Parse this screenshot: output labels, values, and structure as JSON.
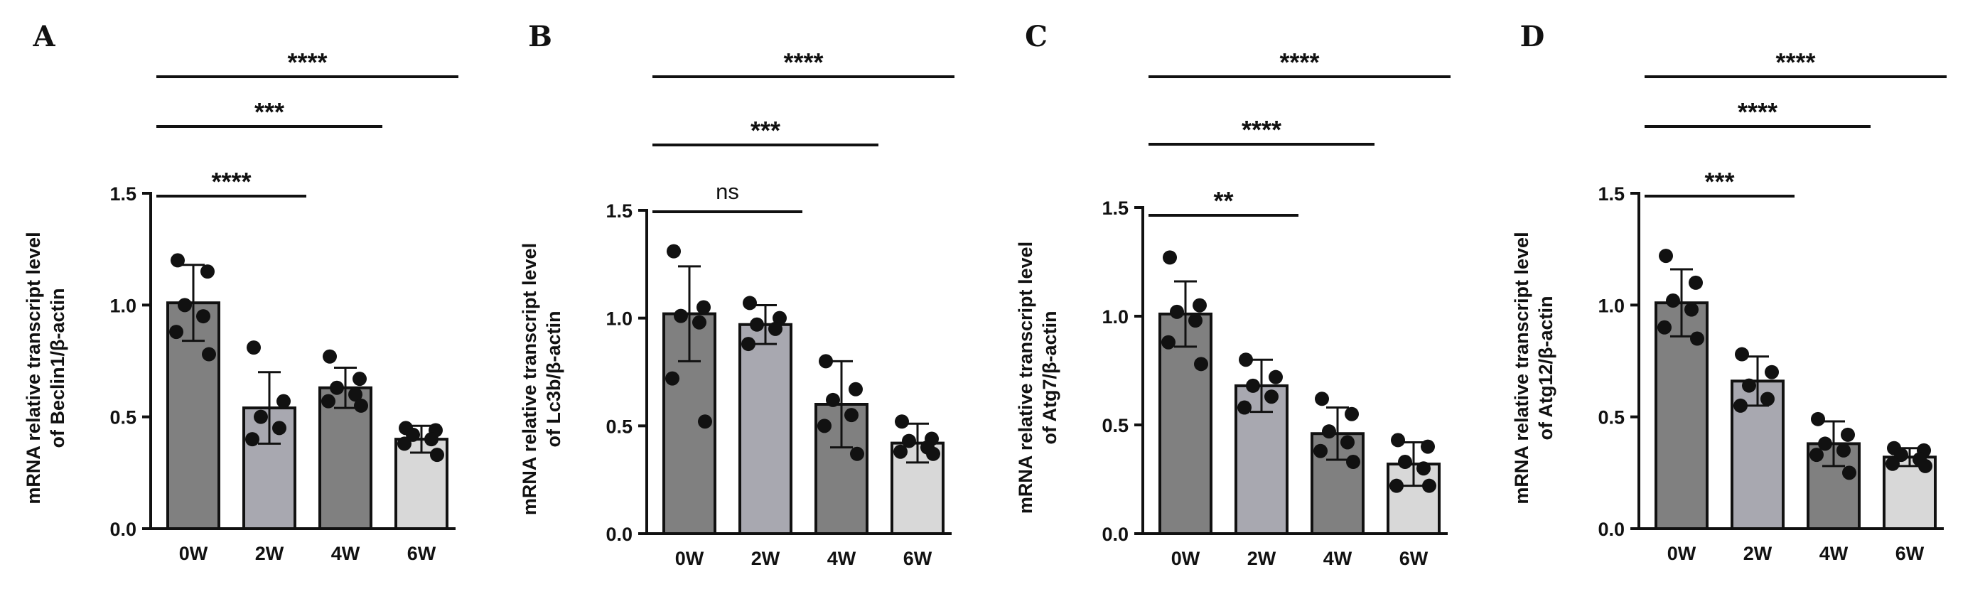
{
  "chart_data": [
    {
      "type": "bar",
      "panel": "A",
      "ylabel": [
        "mRNA relative transcript level",
        "of Beclin1/β-actin"
      ],
      "categories": [
        "0W",
        "2W",
        "4W",
        "6W"
      ],
      "values": [
        1.01,
        0.54,
        0.63,
        0.4
      ],
      "errors": [
        0.17,
        0.16,
        0.09,
        0.06
      ],
      "points": [
        [
          1.2,
          1.15,
          1.0,
          0.95,
          0.88,
          0.78
        ],
        [
          0.81,
          0.57,
          0.5,
          0.45,
          0.4
        ],
        [
          0.77,
          0.67,
          0.63,
          0.6,
          0.57,
          0.55
        ],
        [
          0.45,
          0.44,
          0.42,
          0.4,
          0.38,
          0.33
        ]
      ],
      "bar_colors": [
        "#808080",
        "#a8a8b0",
        "#808080",
        "#d8d8d8"
      ],
      "ylim": [
        0,
        1.5
      ],
      "yticks": [
        "0.0",
        "0.5",
        "1.0",
        "1.5"
      ],
      "significance": [
        {
          "from": 0,
          "to": 1,
          "label": "****"
        },
        {
          "from": 0,
          "to": 2,
          "label": "***"
        },
        {
          "from": 0,
          "to": 3,
          "label": "****"
        }
      ]
    },
    {
      "type": "bar",
      "panel": "B",
      "ylabel": [
        "mRNA relative transcript level",
        "of Lc3b/β-actin"
      ],
      "categories": [
        "0W",
        "2W",
        "4W",
        "6W"
      ],
      "values": [
        1.02,
        0.97,
        0.6,
        0.42
      ],
      "errors": [
        0.22,
        0.09,
        0.2,
        0.09
      ],
      "points": [
        [
          1.31,
          1.05,
          1.01,
          0.98,
          0.72,
          0.52
        ],
        [
          1.07,
          1.0,
          0.97,
          0.95,
          0.88
        ],
        [
          0.8,
          0.67,
          0.62,
          0.55,
          0.5,
          0.37
        ],
        [
          0.52,
          0.44,
          0.43,
          0.4,
          0.38,
          0.37
        ]
      ],
      "bar_colors": [
        "#808080",
        "#a8a8b0",
        "#808080",
        "#d8d8d8"
      ],
      "ylim": [
        0,
        1.5
      ],
      "yticks": [
        "0.0",
        "0.5",
        "1.0",
        "1.5"
      ],
      "significance": [
        {
          "from": 0,
          "to": 1,
          "label": "ns"
        },
        {
          "from": 0,
          "to": 2,
          "label": "***"
        },
        {
          "from": 0,
          "to": 3,
          "label": "****"
        }
      ]
    },
    {
      "type": "bar",
      "panel": "C",
      "ylabel": [
        "mRNA relative transcript level",
        "of Atg7/β-actin"
      ],
      "categories": [
        "0W",
        "2W",
        "4W",
        "6W"
      ],
      "values": [
        1.01,
        0.68,
        0.46,
        0.32
      ],
      "errors": [
        0.15,
        0.12,
        0.12,
        0.1
      ],
      "points": [
        [
          1.27,
          1.05,
          1.02,
          0.98,
          0.88,
          0.78
        ],
        [
          0.8,
          0.72,
          0.68,
          0.63,
          0.58
        ],
        [
          0.62,
          0.55,
          0.47,
          0.42,
          0.38,
          0.33
        ],
        [
          0.43,
          0.4,
          0.33,
          0.3,
          0.22,
          0.22
        ]
      ],
      "bar_colors": [
        "#808080",
        "#a8a8b0",
        "#808080",
        "#d8d8d8"
      ],
      "ylim": [
        0,
        1.5
      ],
      "yticks": [
        "0.0",
        "0.5",
        "1.0",
        "1.5"
      ],
      "significance": [
        {
          "from": 0,
          "to": 1,
          "label": "**"
        },
        {
          "from": 0,
          "to": 2,
          "label": "****"
        },
        {
          "from": 0,
          "to": 3,
          "label": "****"
        }
      ]
    },
    {
      "type": "bar",
      "panel": "D",
      "ylabel": [
        "mRNA relative transcript level",
        "of Atg12/β-actin"
      ],
      "categories": [
        "0W",
        "2W",
        "4W",
        "6W"
      ],
      "values": [
        1.01,
        0.66,
        0.38,
        0.32
      ],
      "errors": [
        0.15,
        0.11,
        0.1,
        0.04
      ],
      "points": [
        [
          1.22,
          1.1,
          1.02,
          0.98,
          0.9,
          0.85
        ],
        [
          0.78,
          0.7,
          0.64,
          0.58,
          0.55
        ],
        [
          0.49,
          0.42,
          0.38,
          0.35,
          0.33,
          0.25
        ],
        [
          0.36,
          0.35,
          0.33,
          0.31,
          0.29,
          0.28
        ]
      ],
      "bar_colors": [
        "#808080",
        "#a8a8b0",
        "#808080",
        "#d8d8d8"
      ],
      "ylim": [
        0,
        1.5
      ],
      "yticks": [
        "0.0",
        "0.5",
        "1.0",
        "1.5"
      ],
      "significance": [
        {
          "from": 0,
          "to": 1,
          "label": "***"
        },
        {
          "from": 0,
          "to": 2,
          "label": "****"
        },
        {
          "from": 0,
          "to": 3,
          "label": "****"
        }
      ]
    }
  ]
}
